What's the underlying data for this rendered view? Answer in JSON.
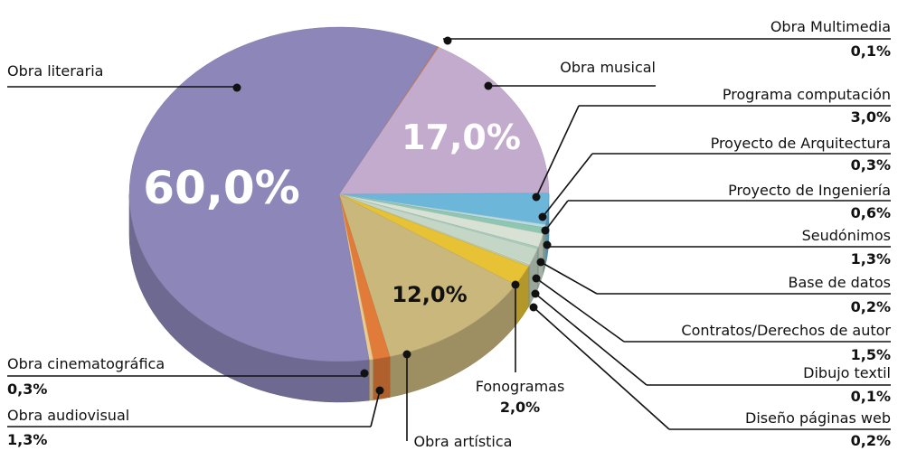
{
  "chart_data": {
    "type": "pie",
    "categories": [
      "Obra Multimedia",
      "Obra musical",
      "Programa computación",
      "Proyecto de Arquitectura",
      "Proyecto de Ingeniería",
      "Seudónimos",
      "Base de datos",
      "Contratos/Derechos de autor",
      "Dibujo textil",
      "Diseño páginas web",
      "Fonogramas",
      "Obra artística",
      "Obra audiovisual",
      "Obra cinematográfica",
      "Obra literaria"
    ],
    "values": [
      0.1,
      17.0,
      3.0,
      0.3,
      0.6,
      1.3,
      0.2,
      1.5,
      0.1,
      0.2,
      2.0,
      12.0,
      1.3,
      0.3,
      60.0
    ],
    "value_labels": [
      "0,1%",
      "17,0%",
      "3,0%",
      "0,3%",
      "0,6%",
      "1,3%",
      "0,2%",
      "1,5%",
      "0,1%",
      "0,2%",
      "2,0%",
      "12,0%",
      "1,3%",
      "0,3%",
      "60,0%"
    ],
    "colors": [
      "#e07b3a",
      "#c3abcd",
      "#6cb6da",
      "#b9dbe0",
      "#8fc6b2",
      "#d7e2d4",
      "#a9cbbc",
      "#c4d6c6",
      "#e2ead6",
      "#bccbad",
      "#e6c234",
      "#c9b77c",
      "#e07b3a",
      "#e8cb93",
      "#8c87b8"
    ]
  }
}
